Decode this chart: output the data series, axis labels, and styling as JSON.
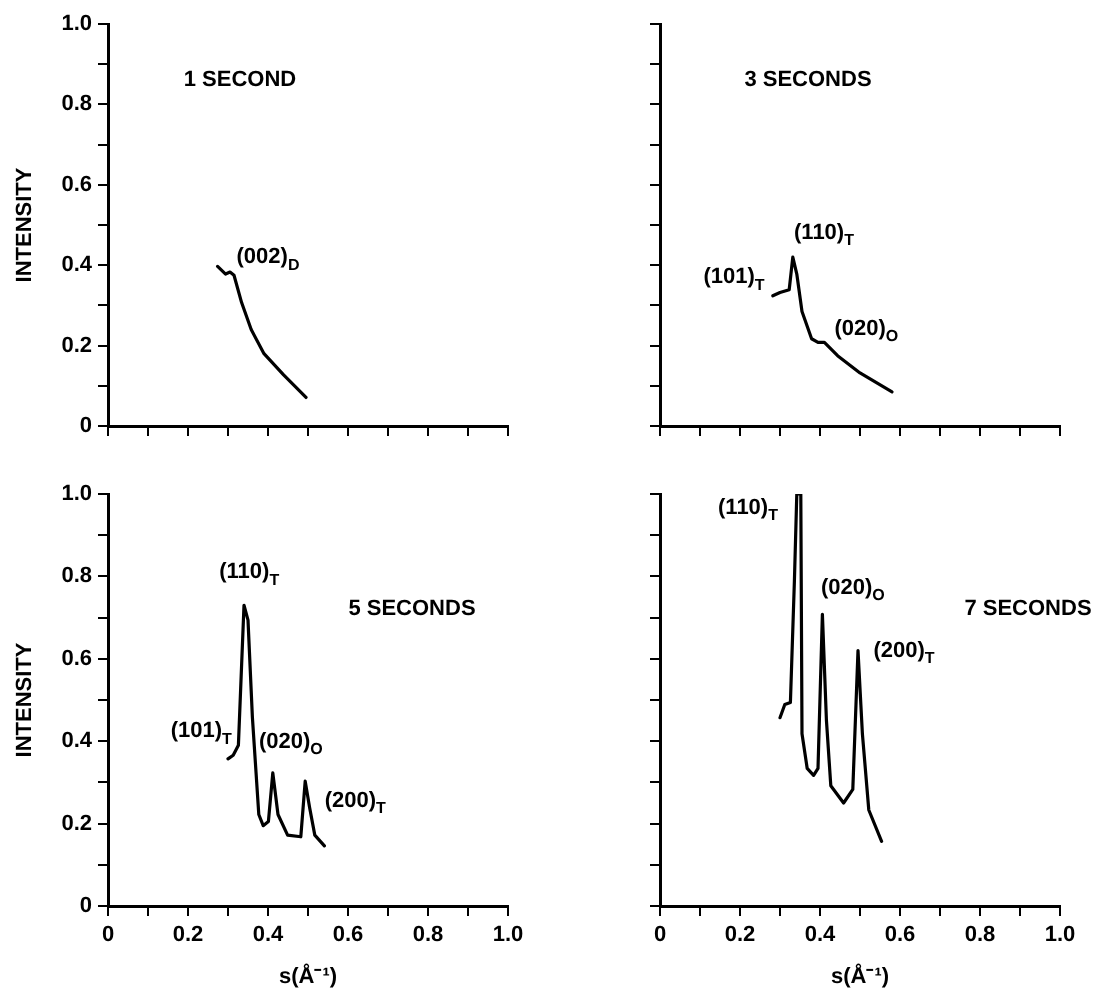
{
  "chart_data": [
    {
      "type": "line",
      "title": "1 SECOND",
      "ylabel": "INTENSITY",
      "color": "#000000",
      "marker": "none",
      "grid": false,
      "tick_labels": "y",
      "x": [
        0.274,
        0.294,
        0.305,
        0.315,
        0.334,
        0.358,
        0.39,
        0.439,
        0.495
      ],
      "values": [
        0.397,
        0.378,
        0.383,
        0.375,
        0.307,
        0.24,
        0.18,
        0.127,
        0.071
      ],
      "xlim": [
        0,
        1
      ],
      "ylim": [
        0,
        1
      ],
      "xticks": [
        0,
        0.1,
        0.2,
        0.3,
        0.4,
        0.5,
        0.6,
        0.7,
        0.8,
        0.9,
        1
      ],
      "yticks": [
        0,
        {
          "value": 0.1,
          "label": null
        },
        0.2,
        {
          "value": 0.3,
          "label": null
        },
        0.4,
        {
          "value": 0.5,
          "label": null
        },
        0.6,
        {
          "value": 0.7,
          "label": null
        },
        0.8,
        {
          "value": 0.9,
          "label": null
        },
        {
          "value": 1,
          "label": "1.0"
        }
      ],
      "annotations": [
        "(002)$_{D}$"
      ]
    },
    {
      "type": "line",
      "title": "3 SECONDS",
      "color": "#000000",
      "marker": "none",
      "grid": false,
      "tick_labels": false,
      "x": [
        0.282,
        0.3,
        0.323,
        0.332,
        0.342,
        0.355,
        0.379,
        0.395,
        0.411,
        0.444,
        0.5,
        0.58
      ],
      "values": [
        0.324,
        0.332,
        0.339,
        0.42,
        0.378,
        0.285,
        0.217,
        0.208,
        0.208,
        0.175,
        0.132,
        0.085
      ],
      "xlim": [
        0,
        1
      ],
      "ylim": [
        0,
        1
      ],
      "xticks": [
        0,
        0.1,
        0.2,
        0.3,
        0.4,
        0.5,
        0.6,
        0.7,
        0.8,
        0.9,
        1
      ],
      "yticks": [
        0,
        0.1,
        0.2,
        0.3,
        0.4,
        0.5,
        0.6,
        0.7,
        0.8,
        0.9,
        1
      ],
      "annotations": [
        "(110)$_{T}$",
        "(101)$_{T}$",
        "(020)$_{O}$"
      ]
    },
    {
      "type": "line",
      "title": "5 SECONDS",
      "xlabel": "s(Å⁻¹)",
      "ylabel": "INTENSITY",
      "color": "#000000",
      "marker": "none",
      "grid": false,
      "x": [
        0.3,
        0.313,
        0.326,
        0.34,
        0.35,
        0.361,
        0.377,
        0.388,
        0.401,
        0.412,
        0.425,
        0.449,
        0.482,
        0.493,
        0.504,
        0.517,
        0.541
      ],
      "values": [
        0.357,
        0.366,
        0.39,
        0.73,
        0.694,
        0.458,
        0.222,
        0.195,
        0.205,
        0.323,
        0.222,
        0.172,
        0.168,
        0.303,
        0.239,
        0.172,
        0.146
      ],
      "xlim": [
        0,
        1
      ],
      "ylim": [
        0,
        1
      ],
      "xticks": [
        0,
        {
          "value": 0.1,
          "label": null
        },
        0.2,
        {
          "value": 0.3,
          "label": null
        },
        0.4,
        {
          "value": 0.5,
          "label": null
        },
        0.6,
        {
          "value": 0.7,
          "label": null
        },
        0.8,
        {
          "value": 0.9,
          "label": null
        },
        {
          "value": 1,
          "label": "1.0"
        }
      ],
      "yticks": [
        0,
        {
          "value": 0.1,
          "label": null
        },
        0.2,
        {
          "value": 0.3,
          "label": null
        },
        0.4,
        {
          "value": 0.5,
          "label": null
        },
        0.6,
        {
          "value": 0.7,
          "label": null
        },
        0.8,
        {
          "value": 0.9,
          "label": null
        },
        {
          "value": 1,
          "label": "1.0"
        }
      ],
      "annotations": [
        "(110)$_{T}$",
        "(101)$_{T}$",
        "(020)$_{O}$",
        "(200)$_{T}$"
      ]
    },
    {
      "type": "line",
      "title": "7 SECONDS",
      "xlabel": "s(Å⁻¹)",
      "color": "#000000",
      "marker": "none",
      "grid": false,
      "tick_labels": "x",
      "x": [
        0.3,
        0.312,
        0.326,
        0.336,
        0.342,
        0.352,
        0.355,
        0.368,
        0.384,
        0.395,
        0.406,
        0.416,
        0.427,
        0.459,
        0.482,
        0.495,
        0.506,
        0.522,
        0.554
      ],
      "values": [
        0.457,
        0.489,
        0.494,
        0.789,
        1,
        1,
        0.418,
        0.334,
        0.317,
        0.334,
        0.708,
        0.452,
        0.292,
        0.25,
        0.283,
        0.62,
        0.418,
        0.233,
        0.157
      ],
      "xlim": [
        0,
        1
      ],
      "ylim": [
        0,
        1
      ],
      "xticks": [
        0,
        {
          "value": 0.1,
          "label": null
        },
        0.2,
        {
          "value": 0.3,
          "label": null
        },
        0.4,
        {
          "value": 0.5,
          "label": null
        },
        0.6,
        {
          "value": 0.7,
          "label": null
        },
        0.8,
        {
          "value": 0.9,
          "label": null
        },
        {
          "value": 1,
          "label": "1.0"
        }
      ],
      "yticks": [
        0,
        0.1,
        0.2,
        0.3,
        0.4,
        0.5,
        0.6,
        0.7,
        0.8,
        0.9,
        1
      ],
      "annotations": [
        "(110)$_{T}$",
        "(020)$_{O}$",
        "(200)$_{T}$"
      ]
    }
  ]
}
